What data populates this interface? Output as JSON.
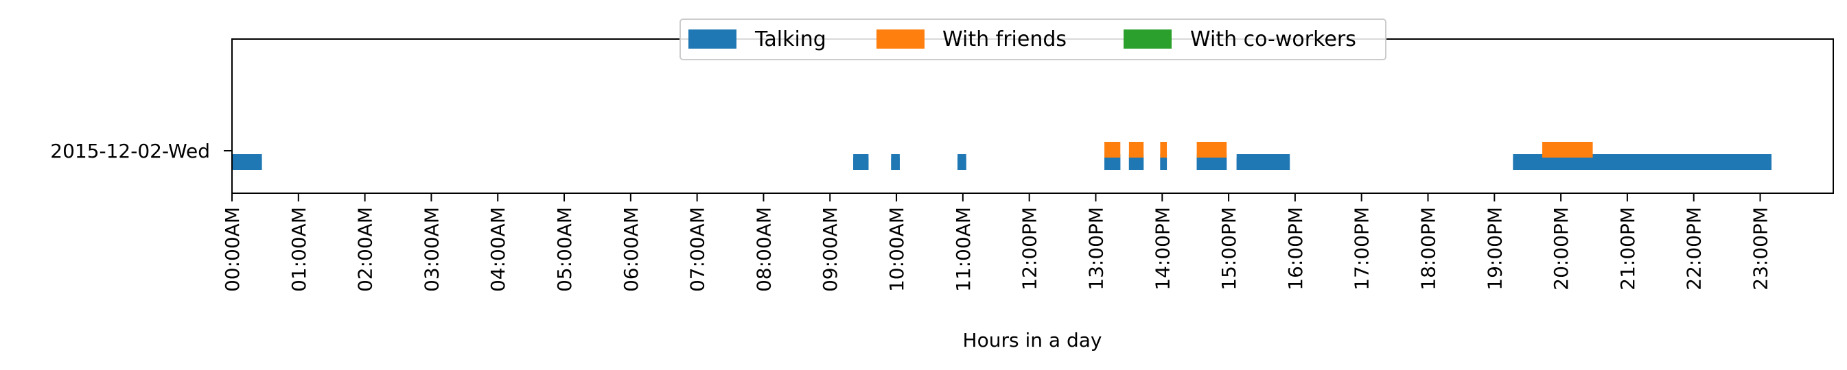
{
  "chart_data": {
    "type": "timeline",
    "title": "",
    "xlabel": "Hours in a day",
    "ylabel": "",
    "xlim": [
      0,
      24.1
    ],
    "x_ticks": [
      "00:00AM",
      "01:00AM",
      "02:00AM",
      "03:00AM",
      "04:00AM",
      "05:00AM",
      "06:00AM",
      "07:00AM",
      "08:00AM",
      "09:00AM",
      "10:00AM",
      "11:00AM",
      "12:00PM",
      "13:00PM",
      "14:00PM",
      "15:00PM",
      "16:00PM",
      "17:00PM",
      "18:00PM",
      "19:00PM",
      "20:00PM",
      "21:00PM",
      "22:00PM",
      "23:00PM"
    ],
    "rows": [
      "2015-12-02-Wed"
    ],
    "legend": {
      "placement": "top-center"
    },
    "series": [
      {
        "name": "Talking",
        "color": "#1f77b4",
        "intervals": [
          [
            0.0,
            0.45
          ],
          [
            9.35,
            9.58
          ],
          [
            9.92,
            10.05
          ],
          [
            10.92,
            11.05
          ],
          [
            13.13,
            13.37
          ],
          [
            13.5,
            13.72
          ],
          [
            13.97,
            14.07
          ],
          [
            14.52,
            14.97
          ],
          [
            15.12,
            15.92
          ],
          [
            19.28,
            23.17
          ]
        ]
      },
      {
        "name": "With friends",
        "color": "#ff7f0e",
        "intervals": [
          [
            13.13,
            13.37
          ],
          [
            13.5,
            13.72
          ],
          [
            13.97,
            14.07
          ],
          [
            14.52,
            14.97
          ],
          [
            19.72,
            20.48
          ]
        ]
      },
      {
        "name": "With co-workers",
        "color": "#2ca02c",
        "intervals": []
      }
    ]
  }
}
